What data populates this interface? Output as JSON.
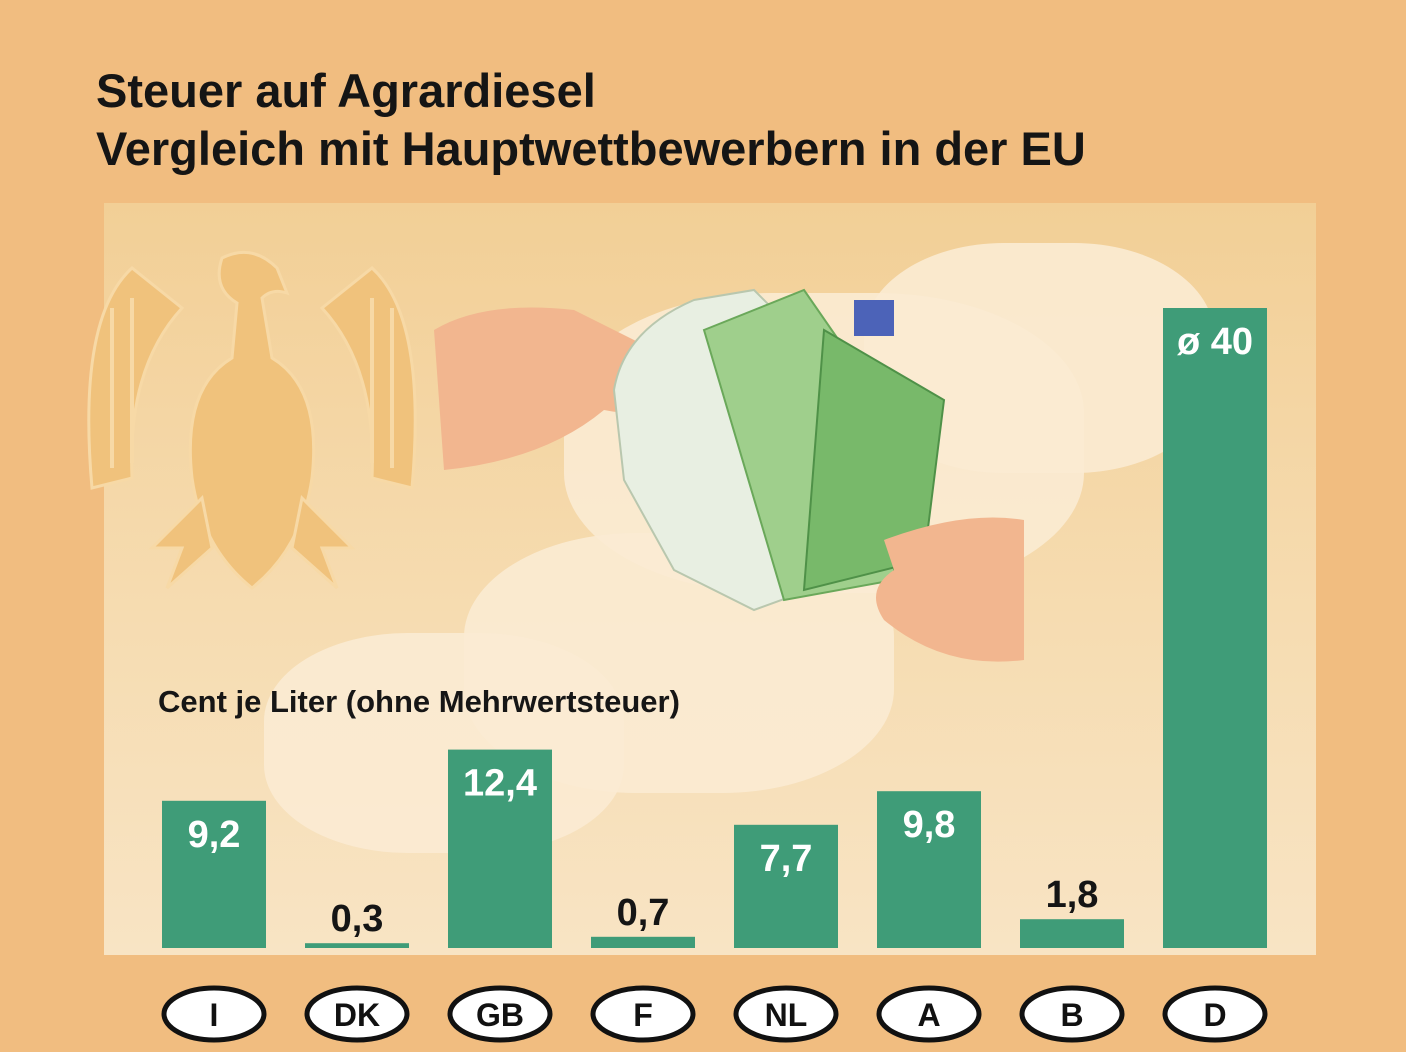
{
  "chart_data": {
    "type": "bar",
    "title": "Steuer auf Agrardiesel",
    "subtitle": "Vergleich mit Hauptwettbewerbern in der EU",
    "unit_label": "Cent je Liter (ohne Mehrwertsteuer)",
    "categories": [
      "I",
      "DK",
      "GB",
      "F",
      "NL",
      "A",
      "B",
      "D"
    ],
    "values": [
      9.2,
      0.3,
      12.4,
      0.7,
      7.7,
      9.8,
      1.8,
      40
    ],
    "value_labels": [
      "9,2",
      "0,3",
      "12,4",
      "0,7",
      "7,7",
      "9,8",
      "1,8",
      "ø 40"
    ],
    "label_position": [
      "inside",
      "above",
      "inside",
      "above",
      "inside",
      "inside",
      "above",
      "inside"
    ],
    "ylim": [
      0,
      40
    ],
    "grid": false,
    "legend": "none",
    "bar_color": "#3f9c78"
  },
  "colors": {
    "background": "#f1bd80",
    "panel": "#f6dcb1",
    "bar": "#3f9c78",
    "label_inside": "#ffffff",
    "label_above": "#151515"
  },
  "decorations": {
    "emblem": "eagle-emblem-icon",
    "photo": "money-hands-illustration"
  }
}
